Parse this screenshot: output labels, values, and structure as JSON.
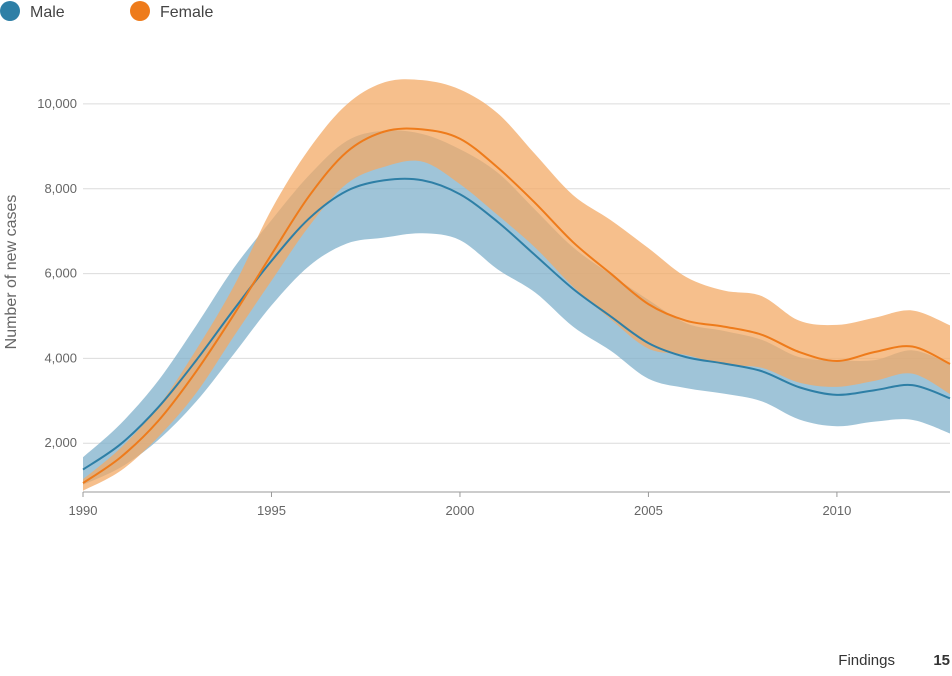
{
  "footer": {
    "section": "Findings",
    "page": "15"
  },
  "chart_data": {
    "type": "area",
    "title": "",
    "xlabel": "",
    "ylabel": "Number of new cases",
    "xlim": [
      1990,
      2013
    ],
    "ylim": [
      850,
      10800
    ],
    "x_ticks": [
      1990,
      1995,
      2000,
      2005,
      2010
    ],
    "x_tick_labels": [
      "1990",
      "1995",
      "2000",
      "2005",
      "2010"
    ],
    "y_ticks": [
      2000,
      4000,
      6000,
      8000,
      10000
    ],
    "y_tick_labels": [
      "2,000",
      "4,000",
      "6,000",
      "8,000",
      "10,000"
    ],
    "grid": "horizontal",
    "legend_position": "top-left",
    "x": [
      1990,
      1991,
      1992,
      1993,
      1994,
      1995,
      1996,
      1997,
      1998,
      1999,
      2000,
      2001,
      2002,
      2003,
      2004,
      2005,
      2006,
      2007,
      2008,
      2009,
      2010,
      2011,
      2012,
      2013
    ],
    "series": [
      {
        "name": "Male",
        "color": "#2e7fa6",
        "band_color": "#7fb0cb",
        "values": [
          1380,
          1980,
          2850,
          3950,
          5150,
          6300,
          7300,
          7950,
          8200,
          8200,
          7870,
          7220,
          6430,
          5640,
          4990,
          4360,
          4030,
          3880,
          3700,
          3320,
          3140,
          3250,
          3370,
          3060
        ],
        "lower": [
          1020,
          1430,
          2080,
          2980,
          4100,
          5250,
          6180,
          6710,
          6850,
          6950,
          6790,
          6100,
          5550,
          4750,
          4180,
          3520,
          3300,
          3170,
          2990,
          2560,
          2400,
          2510,
          2550,
          2230
        ],
        "upper": [
          1670,
          2460,
          3480,
          4770,
          6130,
          7260,
          8320,
          9130,
          9370,
          9290,
          8930,
          8380,
          7500,
          6620,
          5980,
          5380,
          4830,
          4650,
          4440,
          4030,
          3960,
          3960,
          4190,
          3870
        ]
      },
      {
        "name": "Female",
        "color": "#ee7b1b",
        "band_color": "#f3a965",
        "values": [
          1060,
          1670,
          2530,
          3690,
          5030,
          6450,
          7830,
          8870,
          9350,
          9400,
          9180,
          8500,
          7660,
          6740,
          6000,
          5280,
          4890,
          4750,
          4560,
          4150,
          3940,
          4150,
          4280,
          3870
        ],
        "lower": [
          880,
          1350,
          2150,
          3180,
          4520,
          5830,
          7120,
          8120,
          8520,
          8640,
          8110,
          7380,
          6610,
          5690,
          4920,
          4230,
          4080,
          3850,
          3780,
          3430,
          3330,
          3470,
          3640,
          3160
        ],
        "upper": [
          1150,
          1890,
          2870,
          4200,
          5700,
          7510,
          8940,
          9990,
          10510,
          10560,
          10340,
          9780,
          8810,
          7850,
          7260,
          6600,
          5920,
          5600,
          5470,
          4890,
          4790,
          4960,
          5130,
          4780
        ]
      }
    ]
  }
}
